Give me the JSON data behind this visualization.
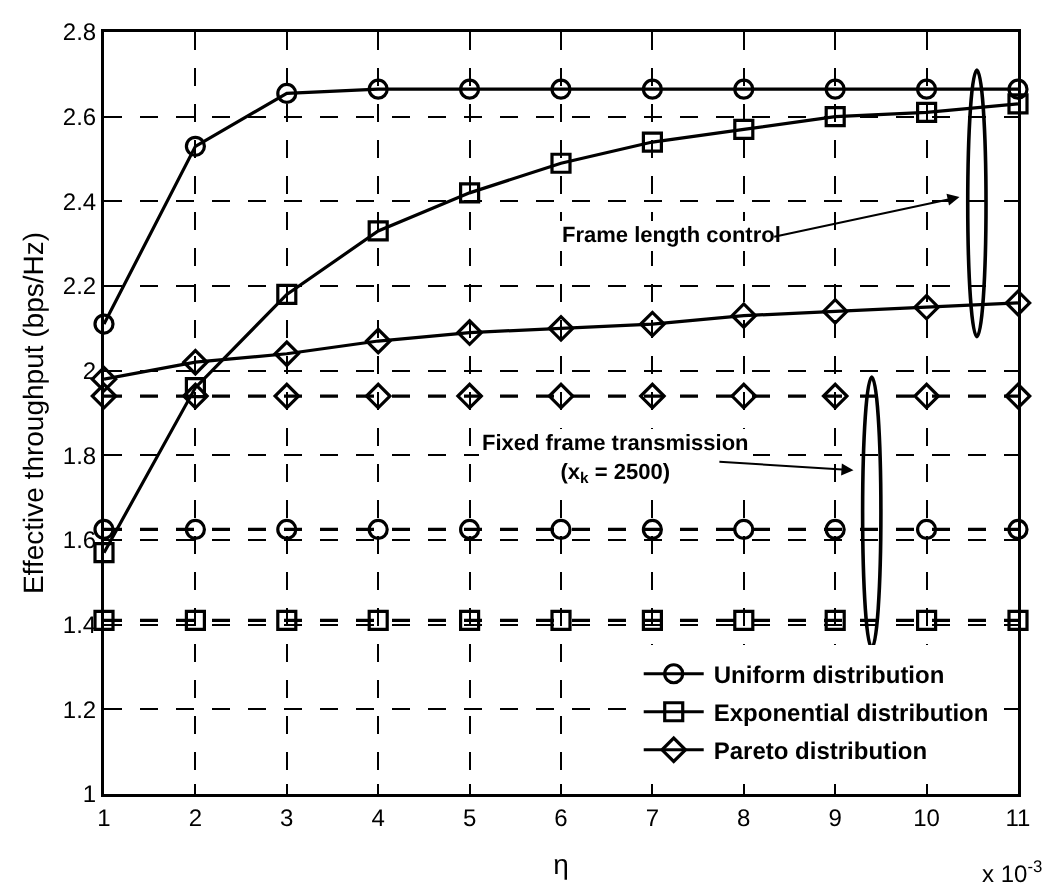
{
  "chart_data": {
    "type": "line",
    "xlabel": "η",
    "ylabel": "Effective throughput (bps/Hz)",
    "x": [
      1,
      2,
      3,
      4,
      5,
      6,
      7,
      8,
      9,
      10,
      11
    ],
    "series": [
      {
        "name": "Uniform distribution",
        "color": "#000000",
        "marker": "circle",
        "line_style": "solid",
        "values": [
          2.11,
          2.53,
          2.655,
          2.665,
          2.665,
          2.665,
          2.665,
          2.665,
          2.665,
          2.665,
          2.665
        ]
      },
      {
        "name": "Exponential distribution",
        "color": "#000000",
        "marker": "square",
        "line_style": "solid",
        "values": [
          1.57,
          1.96,
          2.18,
          2.33,
          2.42,
          2.49,
          2.54,
          2.57,
          2.6,
          2.61,
          2.63
        ]
      },
      {
        "name": "Pareto distribution",
        "color": "#000000",
        "marker": "diamond",
        "line_style": "solid",
        "values": [
          1.98,
          2.02,
          2.04,
          2.07,
          2.09,
          2.1,
          2.11,
          2.13,
          2.14,
          2.15,
          2.16
        ]
      },
      {
        "color": "#000000",
        "marker": "circle",
        "line_style": "dashed",
        "values": [
          1.625,
          1.625,
          1.625,
          1.625,
          1.625,
          1.625,
          1.625,
          1.625,
          1.625,
          1.625,
          1.625
        ]
      },
      {
        "color": "#000000",
        "marker": "square",
        "line_style": "dashed",
        "values": [
          1.41,
          1.41,
          1.41,
          1.41,
          1.41,
          1.41,
          1.41,
          1.41,
          1.41,
          1.41,
          1.41
        ]
      },
      {
        "color": "#000000",
        "marker": "diamond",
        "line_style": "dashed",
        "values": [
          1.94,
          1.94,
          1.94,
          1.94,
          1.94,
          1.94,
          1.94,
          1.94,
          1.94,
          1.94,
          1.94
        ]
      }
    ],
    "xlim": [
      1,
      11
    ],
    "xticks": [
      1,
      2,
      3,
      4,
      5,
      6,
      7,
      8,
      9,
      10,
      11
    ],
    "ylim": [
      1,
      2.8
    ],
    "yticks": [
      1,
      1.2,
      1.4,
      1.6,
      1.8,
      2,
      2.2,
      2.4,
      2.6,
      2.8
    ],
    "grid": true,
    "legend": "bottom right",
    "annotations": [
      "Frame length control",
      "Fixed frame transmission\n(x$_{k}$ = 2500)",
      "x 10$^{-3}$"
    ]
  }
}
